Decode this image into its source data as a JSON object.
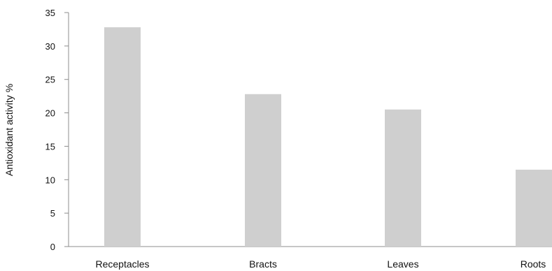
{
  "chart_data": {
    "type": "bar",
    "title": "",
    "xlabel": "",
    "ylabel": "Antioxidant activity %",
    "categories": [
      "Receptacles",
      "Bracts",
      "Leaves",
      "Roots"
    ],
    "values": [
      32.8,
      22.8,
      20.5,
      11.5
    ],
    "ylim": [
      0,
      35
    ],
    "yticks": [
      0,
      5,
      10,
      15,
      20,
      25,
      30,
      35
    ],
    "grid": false,
    "legend": "none",
    "bar_color": "#cfcfcf",
    "axis_color": "#8c8c8c"
  }
}
